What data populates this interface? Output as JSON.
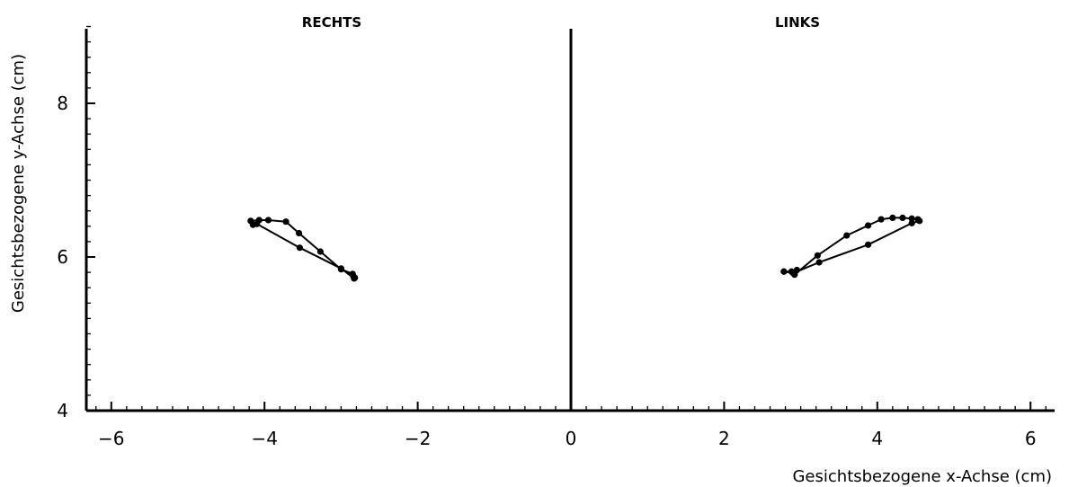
{
  "chart_data": {
    "type": "line",
    "panels": [
      {
        "title": "RECHTS",
        "series": [
          {
            "values": [
              [
                -4.15,
                6.42
              ],
              [
                -4.18,
                6.47
              ],
              [
                -4.07,
                6.48
              ],
              [
                -3.95,
                6.48
              ],
              [
                -3.72,
                6.46
              ],
              [
                -3.55,
                6.31
              ],
              [
                -3.27,
                6.07
              ],
              [
                -3.0,
                5.84
              ],
              [
                -2.85,
                5.78
              ],
              [
                -2.82,
                5.73
              ],
              [
                -2.84,
                5.75
              ],
              [
                -2.83,
                5.72
              ],
              [
                -3.0,
                5.85
              ],
              [
                -3.54,
                6.12
              ],
              [
                -4.1,
                6.43
              ],
              [
                -4.15,
                6.42
              ]
            ]
          }
        ]
      },
      {
        "title": "LINKS",
        "series": [
          {
            "values": [
              [
                2.78,
                5.81
              ],
              [
                2.88,
                5.81
              ],
              [
                2.95,
                5.83
              ],
              [
                2.92,
                5.77
              ],
              [
                3.22,
                6.02
              ],
              [
                3.6,
                6.28
              ],
              [
                3.88,
                6.41
              ],
              [
                4.05,
                6.49
              ],
              [
                4.2,
                6.51
              ],
              [
                4.33,
                6.51
              ],
              [
                4.45,
                6.5
              ],
              [
                4.53,
                6.49
              ],
              [
                4.55,
                6.47
              ],
              [
                4.45,
                6.44
              ],
              [
                3.88,
                6.16
              ],
              [
                3.24,
                5.93
              ],
              [
                2.9,
                5.79
              ],
              [
                2.78,
                5.81
              ]
            ]
          }
        ]
      }
    ],
    "xlabel": "Gesichtsbezogene x-Achse (cm)",
    "ylabel": "Gesichtsbezogene y-Achse (cm)",
    "xlim": [
      -6.4,
      6.4
    ],
    "ylim": [
      4,
      9
    ],
    "x_ticks": [
      -6,
      -4,
      -2,
      0,
      2,
      4,
      6
    ],
    "x_tick_labels": [
      "−6",
      "−4",
      "−2",
      "0",
      "2",
      "4",
      "6"
    ],
    "y_ticks": [
      4,
      6,
      8
    ],
    "y_tick_labels": [
      "4",
      "6",
      "8"
    ],
    "grid": false,
    "colors": {
      "line": "#000000",
      "marker": "#000000",
      "axis": "#000000"
    }
  }
}
